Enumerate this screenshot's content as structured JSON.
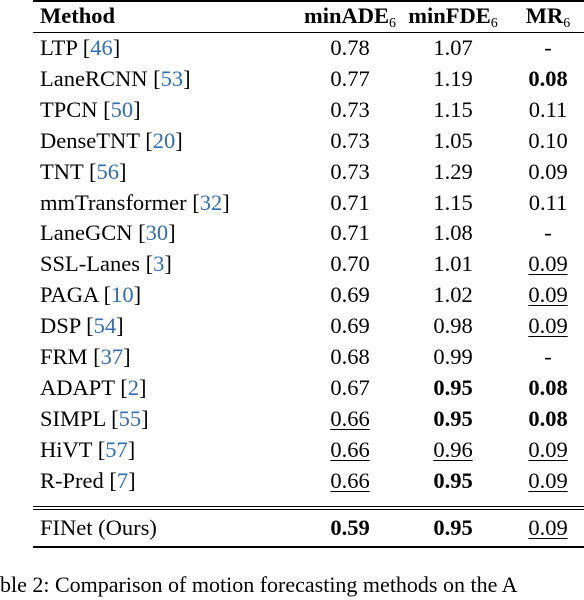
{
  "table": {
    "headers": {
      "method": "Method",
      "ade": "minADE",
      "ade_sub": "6",
      "fde": "minFDE",
      "fde_sub": "6",
      "mr": "MR",
      "mr_sub": "6"
    },
    "rows": [
      {
        "name": "LTP",
        "ref": "46",
        "ade": {
          "v": "0.78",
          "s": ""
        },
        "fde": {
          "v": "1.07",
          "s": ""
        },
        "mr": {
          "v": "-",
          "s": ""
        }
      },
      {
        "name": "LaneRCNN",
        "ref": "53",
        "ade": {
          "v": "0.77",
          "s": ""
        },
        "fde": {
          "v": "1.19",
          "s": ""
        },
        "mr": {
          "v": "0.08",
          "s": "b"
        }
      },
      {
        "name": "TPCN",
        "ref": "50",
        "ade": {
          "v": "0.73",
          "s": ""
        },
        "fde": {
          "v": "1.15",
          "s": ""
        },
        "mr": {
          "v": "0.11",
          "s": ""
        }
      },
      {
        "name": "DenseTNT",
        "ref": "20",
        "ade": {
          "v": "0.73",
          "s": ""
        },
        "fde": {
          "v": "1.05",
          "s": ""
        },
        "mr": {
          "v": "0.10",
          "s": ""
        }
      },
      {
        "name": "TNT",
        "ref": "56",
        "ade": {
          "v": "0.73",
          "s": ""
        },
        "fde": {
          "v": "1.29",
          "s": ""
        },
        "mr": {
          "v": "0.09",
          "s": ""
        }
      },
      {
        "name": "mmTransformer",
        "ref": "32",
        "ade": {
          "v": "0.71",
          "s": ""
        },
        "fde": {
          "v": "1.15",
          "s": ""
        },
        "mr": {
          "v": "0.11",
          "s": ""
        }
      },
      {
        "name": "LaneGCN",
        "ref": "30",
        "ade": {
          "v": "0.71",
          "s": ""
        },
        "fde": {
          "v": "1.08",
          "s": ""
        },
        "mr": {
          "v": "-",
          "s": ""
        }
      },
      {
        "name": "SSL-Lanes",
        "ref": "3",
        "ade": {
          "v": "0.70",
          "s": ""
        },
        "fde": {
          "v": "1.01",
          "s": ""
        },
        "mr": {
          "v": "0.09",
          "s": "u"
        }
      },
      {
        "name": "PAGA",
        "ref": "10",
        "ade": {
          "v": "0.69",
          "s": ""
        },
        "fde": {
          "v": "1.02",
          "s": ""
        },
        "mr": {
          "v": "0.09",
          "s": "u"
        }
      },
      {
        "name": "DSP",
        "ref": "54",
        "ade": {
          "v": "0.69",
          "s": ""
        },
        "fde": {
          "v": "0.98",
          "s": ""
        },
        "mr": {
          "v": "0.09",
          "s": "u"
        }
      },
      {
        "name": "FRM",
        "ref": "37",
        "ade": {
          "v": "0.68",
          "s": ""
        },
        "fde": {
          "v": "0.99",
          "s": ""
        },
        "mr": {
          "v": "-",
          "s": ""
        }
      },
      {
        "name": "ADAPT",
        "ref": "2",
        "ade": {
          "v": "0.67",
          "s": ""
        },
        "fde": {
          "v": "0.95",
          "s": "b"
        },
        "mr": {
          "v": "0.08",
          "s": "b"
        }
      },
      {
        "name": "SIMPL",
        "ref": "55",
        "ade": {
          "v": "0.66",
          "s": "u"
        },
        "fde": {
          "v": "0.95",
          "s": "b"
        },
        "mr": {
          "v": "0.08",
          "s": "b"
        }
      },
      {
        "name": "HiVT",
        "ref": "57",
        "ade": {
          "v": "0.66",
          "s": "u"
        },
        "fde": {
          "v": "0.96",
          "s": "u"
        },
        "mr": {
          "v": "0.09",
          "s": "u"
        }
      },
      {
        "name": "R-Pred",
        "ref": "7",
        "ade": {
          "v": "0.66",
          "s": "u"
        },
        "fde": {
          "v": "0.95",
          "s": "b"
        },
        "mr": {
          "v": "0.09",
          "s": "u"
        }
      }
    ],
    "ours": {
      "name": "FINet (Ours)",
      "ade": {
        "v": "0.59",
        "s": "b"
      },
      "fde": {
        "v": "0.95",
        "s": "b"
      },
      "mr": {
        "v": "0.09",
        "s": "u"
      }
    }
  },
  "caption_fragment": "ble 2: Comparison of motion forecasting methods on the A",
  "colors": {
    "reference": "#2f6db5",
    "text": "#000000"
  }
}
